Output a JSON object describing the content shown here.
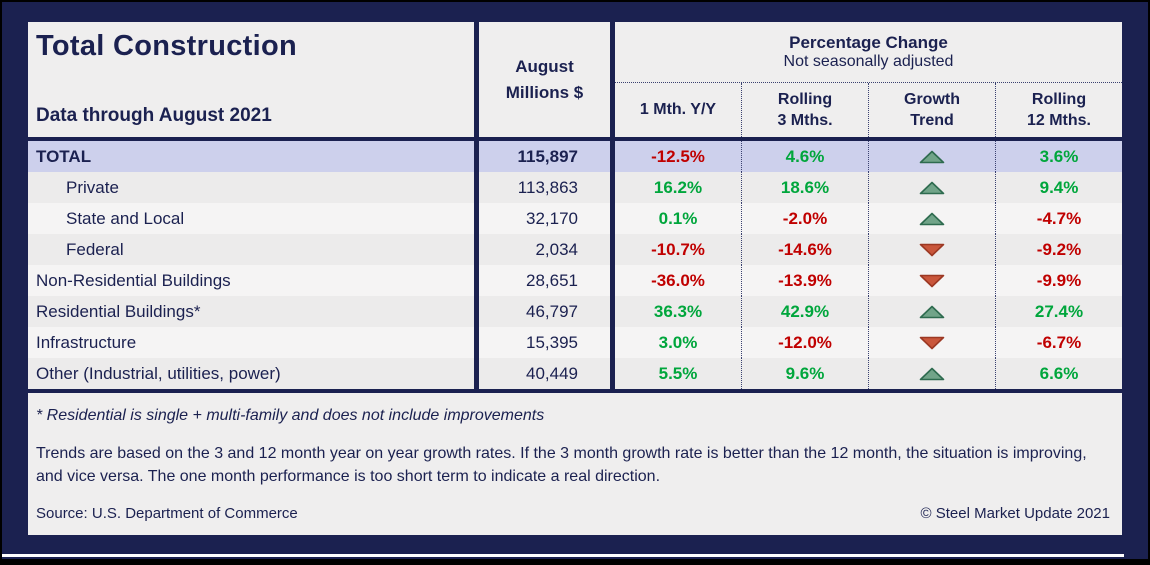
{
  "header": {
    "title": "Total Construction",
    "subtitle": "Data through August 2021",
    "millions_col_line1": "August",
    "millions_col_line2": "Millions $",
    "pct_group_title": "Percentage Change",
    "pct_group_subtitle": "Not seasonally adjusted",
    "sub_columns": [
      {
        "line1": "1 Mth. Y/Y",
        "line2": ""
      },
      {
        "line1": "Rolling",
        "line2": "3 Mths."
      },
      {
        "line1": "Growth",
        "line2": "Trend"
      },
      {
        "line1": "Rolling",
        "line2": "12 Mths."
      }
    ]
  },
  "rows": [
    {
      "label": "TOTAL",
      "millions": "115,897",
      "one_month": "-12.5%",
      "rolling_3": "4.6%",
      "trend": "up",
      "rolling_12": "3.6%"
    },
    {
      "label": "Private",
      "millions": "113,863",
      "one_month": "16.2%",
      "rolling_3": "18.6%",
      "trend": "up",
      "rolling_12": "9.4%"
    },
    {
      "label": "State and Local",
      "millions": "32,170",
      "one_month": "0.1%",
      "rolling_3": "-2.0%",
      "trend": "up",
      "rolling_12": "-4.7%"
    },
    {
      "label": "Federal",
      "millions": "2,034",
      "one_month": "-10.7%",
      "rolling_3": "-14.6%",
      "trend": "down",
      "rolling_12": "-9.2%"
    },
    {
      "label": "Non-Residential Buildings",
      "millions": "28,651",
      "one_month": "-36.0%",
      "rolling_3": "-13.9%",
      "trend": "down",
      "rolling_12": "-9.9%"
    },
    {
      "label": "Residential Buildings*",
      "millions": "46,797",
      "one_month": "36.3%",
      "rolling_3": "42.9%",
      "trend": "up",
      "rolling_12": "27.4%"
    },
    {
      "label": "Infrastructure",
      "millions": "15,395",
      "one_month": "3.0%",
      "rolling_3": "-12.0%",
      "trend": "down",
      "rolling_12": "-6.7%"
    },
    {
      "label": "Other (Industrial, utilities, power)",
      "millions": "40,449",
      "one_month": "5.5%",
      "rolling_3": "9.6%",
      "trend": "up",
      "rolling_12": "6.6%"
    }
  ],
  "footer": {
    "footnote": "* Residential is single + multi-family and does not include improvements",
    "trend_note": "Trends are based on the 3 and 12 month year on year growth rates. If the 3 month growth rate is better than the 12 month, the situation is improving, and vice versa. The one month performance is too short term to indicate a real direction.",
    "source": "Source: U.S. Department of Commerce",
    "copyright": "© Steel Market Update 2021"
  },
  "colors": {
    "navy": "#1b2150",
    "card_bg": "#efeeee",
    "total_row_bg": "#cdd0ec",
    "row_gray": "#ecebeb",
    "row_light": "#f5f4f4",
    "positive_green": "#00a63c",
    "negative_red": "#c00000",
    "trend_up_fill": "#71a489",
    "trend_up_border": "#2e6b4f",
    "trend_down_fill": "#c9563b",
    "trend_down_border": "#9c3823"
  },
  "chart_data": {
    "type": "table",
    "title": "Total Construction",
    "subtitle": "Data through August 2021",
    "column_group": {
      "label": "Percentage Change",
      "note": "Not seasonally adjusted"
    },
    "columns": [
      "Category",
      "August Millions $",
      "1 Mth. Y/Y %",
      "Rolling 3 Mths. %",
      "Growth Trend",
      "Rolling 12 Mths. %"
    ],
    "rows": [
      [
        "TOTAL",
        115897,
        -12.5,
        4.6,
        "up",
        3.6
      ],
      [
        "Private",
        113863,
        16.2,
        18.6,
        "up",
        9.4
      ],
      [
        "State and Local",
        32170,
        0.1,
        -2.0,
        "up",
        -4.7
      ],
      [
        "Federal",
        2034,
        -10.7,
        -14.6,
        "down",
        -9.2
      ],
      [
        "Non-Residential Buildings",
        28651,
        -36.0,
        -13.9,
        "down",
        -9.9
      ],
      [
        "Residential Buildings*",
        46797,
        36.3,
        42.9,
        "up",
        27.4
      ],
      [
        "Infrastructure",
        15395,
        3.0,
        -12.0,
        "down",
        -6.7
      ],
      [
        "Other (Industrial, utilities, power)",
        40449,
        5.5,
        9.6,
        "up",
        6.6
      ]
    ]
  }
}
